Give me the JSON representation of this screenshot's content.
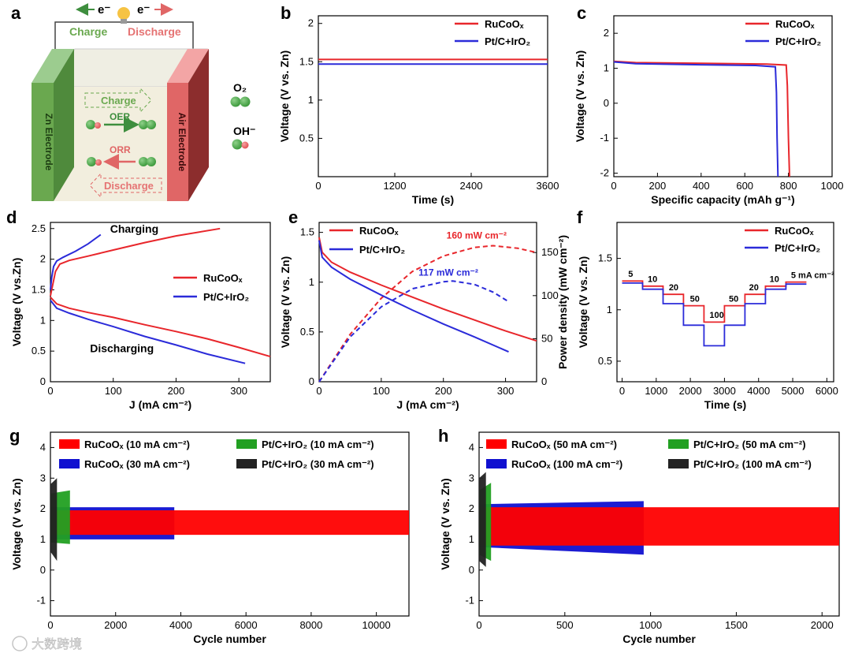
{
  "panels": {
    "a": {
      "label": "a",
      "electron_left": "e⁻",
      "electron_right": "e⁻",
      "charge_top": "Charge",
      "discharge_top": "Discharge",
      "zn_electrode": "Zn Electrode",
      "air_electrode": "Air Electrode",
      "charge_box": "Charge",
      "oer": "OER",
      "orr": "ORR",
      "discharge_box": "Discharge",
      "legend_o2": "O₂",
      "legend_oh": "OH⁻",
      "colors": {
        "green": "#6aa84f",
        "red": "#e06666",
        "charge_text": "#6aa84f",
        "discharge_text": "#e57373"
      }
    },
    "b": {
      "label": "b"
    },
    "c": {
      "label": "c"
    },
    "d": {
      "label": "d"
    },
    "e": {
      "label": "e"
    },
    "f": {
      "label": "f"
    },
    "g": {
      "label": "g"
    },
    "h": {
      "label": "h"
    }
  },
  "watermark": "大数跨境",
  "chart_data": [
    {
      "id": "b",
      "type": "line",
      "xlabel": "Time (s)",
      "ylabel": "Voltage (V vs. Zn)",
      "xlim": [
        0,
        3600
      ],
      "ylim": [
        0,
        2.1
      ],
      "xticks": [
        0,
        1200,
        2400,
        3600
      ],
      "yticks": [
        0.5,
        1,
        1.5,
        2
      ],
      "legend_position": "top-right",
      "series": [
        {
          "name": "RuCoOₓ",
          "color": "#e8262b",
          "x": [
            0,
            3600
          ],
          "y": [
            1.53,
            1.53
          ]
        },
        {
          "name": "Pt/C+IrO₂",
          "color": "#2b2bd9",
          "x": [
            0,
            3600
          ],
          "y": [
            1.47,
            1.47
          ]
        }
      ]
    },
    {
      "id": "c",
      "type": "line",
      "xlabel": "Specific capacity (mAh g⁻¹)",
      "ylabel": "Voltage (V vs. Zn)",
      "xlim": [
        0,
        1000
      ],
      "ylim": [
        -2.1,
        2.5
      ],
      "xticks": [
        0,
        200,
        400,
        600,
        800,
        1000
      ],
      "yticks": [
        -2,
        -1,
        0,
        1,
        2
      ],
      "legend_position": "top-right",
      "series": [
        {
          "name": "RuCoOₓ",
          "color": "#e8262b",
          "x": [
            0,
            100,
            400,
            700,
            790,
            795,
            800,
            805
          ],
          "y": [
            1.2,
            1.16,
            1.14,
            1.12,
            1.09,
            0.5,
            -1.0,
            -2.1
          ]
        },
        {
          "name": "Pt/C+IrO₂",
          "color": "#2b2bd9",
          "x": [
            0,
            100,
            400,
            650,
            740,
            745,
            748,
            752
          ],
          "y": [
            1.18,
            1.13,
            1.1,
            1.08,
            1.04,
            0.3,
            -1.0,
            -2.1
          ]
        }
      ]
    },
    {
      "id": "d",
      "type": "line",
      "xlabel": "J (mA cm⁻²)",
      "ylabel": "Voltage (V vs.Zn)",
      "xlim": [
        0,
        350
      ],
      "ylim": [
        0,
        2.6
      ],
      "xticks": [
        0,
        100,
        200,
        300
      ],
      "yticks": [
        0,
        0.5,
        1,
        1.5,
        2,
        2.5
      ],
      "legend_position": "center-right",
      "annotations": [
        "Charging",
        "Discharging"
      ],
      "series": [
        {
          "name": "RuCoOₓ",
          "color": "#e8262b",
          "charge_x": [
            0,
            4,
            8,
            15,
            30,
            60,
            100,
            150,
            200,
            270
          ],
          "charge_y": [
            1.4,
            1.6,
            1.8,
            1.92,
            1.98,
            2.05,
            2.15,
            2.27,
            2.38,
            2.5
          ],
          "discharge_x": [
            0,
            10,
            30,
            60,
            100,
            150,
            200,
            250,
            300,
            350
          ],
          "discharge_y": [
            1.38,
            1.27,
            1.2,
            1.13,
            1.05,
            0.93,
            0.82,
            0.7,
            0.56,
            0.41
          ]
        },
        {
          "name": "Pt/C+IrO₂",
          "color": "#2b2bd9",
          "charge_x": [
            0,
            2,
            5,
            10,
            20,
            40,
            60,
            80
          ],
          "charge_y": [
            1.5,
            1.7,
            1.88,
            1.97,
            2.03,
            2.13,
            2.25,
            2.4
          ],
          "discharge_x": [
            0,
            10,
            30,
            60,
            100,
            150,
            200,
            250,
            310
          ],
          "discharge_y": [
            1.33,
            1.2,
            1.12,
            1.02,
            0.9,
            0.74,
            0.6,
            0.45,
            0.3
          ]
        }
      ]
    },
    {
      "id": "e",
      "type": "line",
      "xlabel": "J (mA cm⁻²)",
      "ylabel": "Voltage (V vs. Zn)",
      "y2label": "Power density (mW cm⁻²)",
      "xlim": [
        0,
        350
      ],
      "ylim": [
        0,
        1.6
      ],
      "y2lim": [
        0,
        185
      ],
      "xticks": [
        0,
        100,
        200,
        300
      ],
      "yticks": [
        0,
        0.5,
        1,
        1.5
      ],
      "y2ticks": [
        0,
        50,
        100,
        150
      ],
      "annotations": [
        "160 mW cm⁻²",
        "117 mW cm⁻²"
      ],
      "series": [
        {
          "name": "RuCoOₓ",
          "color": "#e8262b",
          "voltage_x": [
            0,
            5,
            20,
            50,
            100,
            150,
            200,
            250,
            300,
            350
          ],
          "voltage_y": [
            1.45,
            1.3,
            1.2,
            1.1,
            0.97,
            0.85,
            0.73,
            0.62,
            0.51,
            0.41
          ],
          "power_x": [
            0,
            50,
            100,
            150,
            200,
            250,
            280,
            320,
            350
          ],
          "power_y": [
            0,
            55,
            97,
            128,
            146,
            156,
            158,
            155,
            150
          ]
        },
        {
          "name": "Pt/C+IrO₂",
          "color": "#2b2bd9",
          "voltage_x": [
            0,
            5,
            20,
            50,
            100,
            150,
            200,
            250,
            305
          ],
          "voltage_y": [
            1.42,
            1.25,
            1.15,
            1.03,
            0.87,
            0.72,
            0.58,
            0.45,
            0.3
          ],
          "power_x": [
            0,
            50,
            100,
            150,
            200,
            215,
            250,
            280,
            305
          ],
          "power_y": [
            0,
            52,
            87,
            108,
            116,
            117,
            113,
            104,
            93
          ]
        }
      ]
    },
    {
      "id": "f",
      "type": "line",
      "xlabel": "Time (s)",
      "ylabel": "Voltage (V vs. Zn)",
      "xlim": [
        -150,
        6200
      ],
      "ylim": [
        0.3,
        1.85
      ],
      "xticks": [
        0,
        1000,
        2000,
        3000,
        4000,
        5000,
        6000
      ],
      "yticks": [
        0.5,
        1,
        1.5
      ],
      "legend_position": "top-right",
      "step_labels": [
        "5",
        "10",
        "20",
        "50",
        "100",
        "50",
        "20",
        "10",
        "5 mA cm⁻²"
      ],
      "series": [
        {
          "name": "RuCoOₓ",
          "color": "#e8262b",
          "x": [
            0,
            600,
            600,
            1200,
            1200,
            1800,
            1800,
            2400,
            2400,
            3000,
            3000,
            3600,
            3600,
            4200,
            4200,
            4800,
            4800,
            5400
          ],
          "y": [
            1.28,
            1.28,
            1.23,
            1.23,
            1.15,
            1.15,
            1.04,
            1.04,
            0.88,
            0.88,
            1.04,
            1.04,
            1.15,
            1.15,
            1.23,
            1.23,
            1.27,
            1.27
          ]
        },
        {
          "name": "Pt/C+IrO₂",
          "color": "#2b2bd9",
          "x": [
            0,
            600,
            600,
            1200,
            1200,
            1800,
            1800,
            2400,
            2400,
            3000,
            3000,
            3600,
            3600,
            4200,
            4200,
            4800,
            4800,
            5400
          ],
          "y": [
            1.26,
            1.26,
            1.2,
            1.2,
            1.06,
            1.06,
            0.85,
            0.85,
            0.65,
            0.65,
            0.85,
            0.85,
            1.06,
            1.06,
            1.2,
            1.2,
            1.25,
            1.25
          ]
        }
      ]
    },
    {
      "id": "g",
      "type": "area",
      "xlabel": "Cycle number",
      "ylabel": "Voltage (V vs. Zn)",
      "xlim": [
        0,
        11000
      ],
      "ylim": [
        -1.5,
        4.5
      ],
      "xticks": [
        0,
        2000,
        4000,
        6000,
        8000,
        10000
      ],
      "yticks": [
        -1,
        0,
        1,
        2,
        3,
        4
      ],
      "legend_position": "top",
      "series": [
        {
          "name": "RuCoOₓ (10 mA cm⁻²)",
          "color": "#ff0000",
          "x": [
            0,
            11000
          ],
          "upper": [
            1.95,
            1.95
          ],
          "lower": [
            1.15,
            1.15
          ]
        },
        {
          "name": "Pt/C+IrO₂ (10 mA cm⁻²)",
          "color": "#22a022",
          "x": [
            0,
            600
          ],
          "upper": [
            2.5,
            2.6
          ],
          "lower": [
            0.9,
            0.85
          ]
        },
        {
          "name": "RuCoOₓ (30 mA cm⁻²)",
          "color": "#1010d0",
          "x": [
            0,
            3800
          ],
          "upper": [
            2.05,
            2.05
          ],
          "lower": [
            1.0,
            1.0
          ]
        },
        {
          "name": "Pt/C+IrO₂ (30 mA cm⁻²)",
          "color": "#222222",
          "x": [
            0,
            200
          ],
          "upper": [
            2.8,
            3.0
          ],
          "lower": [
            0.6,
            0.3
          ]
        }
      ]
    },
    {
      "id": "h",
      "type": "area",
      "xlabel": "Cycle number",
      "ylabel": "Voltage (V vs. Zn)",
      "xlim": [
        0,
        2100
      ],
      "ylim": [
        -1.5,
        4.5
      ],
      "xticks": [
        0,
        500,
        1000,
        1500,
        2000
      ],
      "yticks": [
        -1,
        0,
        1,
        2,
        3,
        4
      ],
      "legend_position": "top",
      "series": [
        {
          "name": "RuCoOₓ (50 mA cm⁻²)",
          "color": "#ff0000",
          "x": [
            0,
            2100
          ],
          "upper": [
            2.05,
            2.05
          ],
          "lower": [
            0.8,
            0.8
          ]
        },
        {
          "name": "Pt/C+IrO₂ (50 mA cm⁻²)",
          "color": "#22a022",
          "x": [
            0,
            70
          ],
          "upper": [
            2.6,
            2.85
          ],
          "lower": [
            0.5,
            0.3
          ]
        },
        {
          "name": "RuCoOₓ (100 mA cm⁻²)",
          "color": "#1010d0",
          "x": [
            0,
            960
          ],
          "upper": [
            2.15,
            2.25
          ],
          "lower": [
            0.75,
            0.5
          ]
        },
        {
          "name": "Pt/C+IrO₂ (100 mA cm⁻²)",
          "color": "#222222",
          "x": [
            0,
            40
          ],
          "upper": [
            3.0,
            3.2
          ],
          "lower": [
            0.3,
            0.1
          ]
        }
      ]
    }
  ]
}
